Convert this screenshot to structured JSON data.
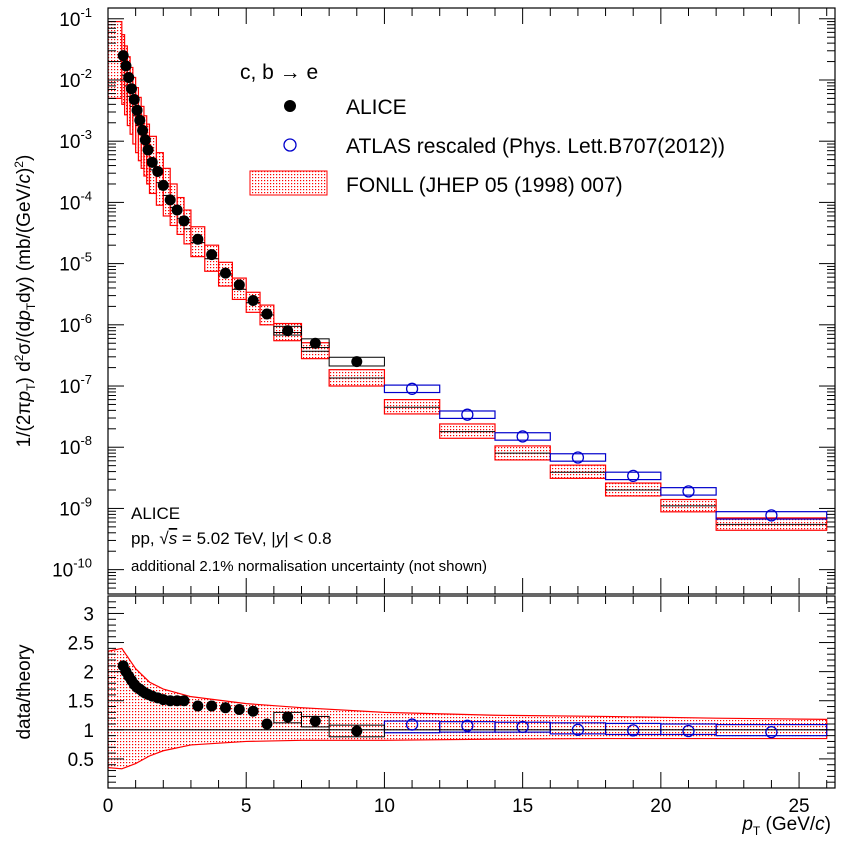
{
  "chart_data": [
    {
      "type": "scatter",
      "panel": "top",
      "xlabel": "p_T (GeV/c)",
      "ylabel": "1/(2πp_T) d²σ/(dp_T dy) (mb/(GeV/c)²)",
      "xlim": [
        0,
        26.3
      ],
      "ylim": [
        4e-11,
        0.15
      ],
      "yscale": "log",
      "ytick_labels": [
        "10^-1",
        "10^-2",
        "10^-3",
        "10^-4",
        "10^-5",
        "10^-6",
        "10^-7",
        "10^-8",
        "10^-9",
        "10^-10"
      ],
      "xtick_labels": [
        "0",
        "5",
        "10",
        "15",
        "20",
        "25"
      ],
      "legend": {
        "header": "c, b → e",
        "entries": [
          "ALICE",
          "ATLAS rescaled (Phys. Lett.B707(2012))",
          "FONLL (JHEP 05 (1998) 007)"
        ],
        "placement": "top-right"
      },
      "annotations": {
        "line1": "ALICE",
        "line2": "pp, √s = 5.02 TeV, |y| < 0.8",
        "line3": "additional 2.1% normalisation uncertainty (not shown)"
      },
      "series": [
        {
          "name": "ALICE",
          "style": "filled-circle",
          "color": "#000000",
          "x": [
            0.55,
            0.65,
            0.75,
            0.85,
            0.95,
            1.05,
            1.15,
            1.25,
            1.35,
            1.45,
            1.6,
            1.8,
            2.0,
            2.25,
            2.5,
            2.75,
            3.25,
            3.75,
            4.25,
            4.75,
            5.25,
            5.75,
            6.5,
            7.5,
            9.0
          ],
          "y": [
            0.025,
            0.017,
            0.011,
            0.0072,
            0.0048,
            0.0032,
            0.0022,
            0.0015,
            0.00105,
            0.00072,
            0.00045,
            0.00032,
            0.00019,
            0.00011,
            7.5e-05,
            5e-05,
            2.5e-05,
            1.4e-05,
            7e-06,
            4.5e-06,
            2.5e-06,
            1.5e-06,
            8e-07,
            5e-07,
            2.5e-07
          ]
        },
        {
          "name": "ATLAS rescaled (Phys. Lett.B707(2012))",
          "style": "open-circle",
          "color": "#0000cc",
          "x": [
            11,
            13,
            15,
            17,
            19,
            21,
            24
          ],
          "y": [
            9e-08,
            3.4e-08,
            1.5e-08,
            6.8e-09,
            3.4e-09,
            1.9e-09,
            7.7e-10
          ]
        },
        {
          "name": "FONLL (JHEP 05 (1998) 007)",
          "style": "band",
          "color": "#ff0000",
          "bins": [
            [
              0,
              0.5,
              0.02,
              0.09,
              0.005
            ],
            [
              0.5,
              0.6,
              0.012,
              0.055,
              0.004
            ],
            [
              0.6,
              0.7,
              0.008,
              0.036,
              0.0027
            ],
            [
              0.7,
              0.8,
              0.0054,
              0.024,
              0.0018
            ],
            [
              0.8,
              0.9,
              0.0037,
              0.016,
              0.0013
            ],
            [
              0.9,
              1.0,
              0.0026,
              0.011,
              0.0009
            ],
            [
              1.0,
              1.1,
              0.0018,
              0.0075,
              0.00065
            ],
            [
              1.1,
              1.2,
              0.0013,
              0.0052,
              0.00048
            ],
            [
              1.2,
              1.3,
              0.00093,
              0.0037,
              0.00036
            ],
            [
              1.3,
              1.4,
              0.00068,
              0.0026,
              0.00027
            ],
            [
              1.4,
              1.5,
              0.0005,
              0.0019,
              0.0002
            ],
            [
              1.5,
              1.75,
              0.00034,
              0.0012,
              0.00014
            ],
            [
              1.75,
              2.0,
              0.00021,
              0.00065,
              9e-05
            ],
            [
              2.0,
              2.25,
              0.00013,
              0.00036,
              6e-05
            ],
            [
              2.25,
              2.5,
              8.3e-05,
              0.0002,
              4.2e-05
            ],
            [
              2.5,
              2.75,
              5.5e-05,
              0.00012,
              3e-05
            ],
            [
              2.75,
              3.0,
              3.7e-05,
              7.5e-05,
              2.1e-05
            ],
            [
              3.0,
              3.5,
              2.2e-05,
              4e-05,
              1.3e-05
            ],
            [
              3.5,
              4.0,
              1.2e-05,
              2e-05,
              7.5e-06
            ],
            [
              4.0,
              4.5,
              6.5e-06,
              1.05e-05,
              4.3e-06
            ],
            [
              4.5,
              5.0,
              3.8e-06,
              5.8e-06,
              2.6e-06
            ],
            [
              5.0,
              5.5,
              2.3e-06,
              3.4e-06,
              1.6e-06
            ],
            [
              5.5,
              6.0,
              1.45e-06,
              2.1e-06,
              1e-06
            ],
            [
              6.0,
              7.0,
              7.5e-07,
              1.05e-06,
              5.5e-07
            ],
            [
              7.0,
              8.0,
              3.7e-07,
              5.1e-07,
              2.8e-07
            ],
            [
              8.0,
              10.0,
              1.35e-07,
              1.85e-07,
              1e-07
            ],
            [
              10.0,
              12.0,
              4.5e-08,
              6e-08,
              3.5e-08
            ],
            [
              12.0,
              14.0,
              1.8e-08,
              2.4e-08,
              1.4e-08
            ],
            [
              14.0,
              16.0,
              8e-09,
              1.05e-08,
              6.2e-09
            ],
            [
              16.0,
              18.0,
              3.9e-09,
              5.1e-09,
              3.1e-09
            ],
            [
              18.0,
              20.0,
              2e-09,
              2.6e-09,
              1.6e-09
            ],
            [
              20.0,
              22.0,
              1.1e-09,
              1.4e-09,
              8.8e-10
            ],
            [
              22.0,
              26.0,
              5.5e-10,
              7e-10,
              4.4e-10
            ]
          ]
        }
      ]
    },
    {
      "type": "scatter",
      "panel": "bottom",
      "xlabel": "p_T (GeV/c)",
      "ylabel": "data/theory",
      "xlim": [
        0,
        26.3
      ],
      "ylim": [
        0,
        3.3
      ],
      "ytick_labels": [
        "0.5",
        "1",
        "1.5",
        "2",
        "2.5",
        "3"
      ],
      "xtick_labels": [
        "0",
        "5",
        "10",
        "15",
        "20",
        "25"
      ],
      "reference_line": 1,
      "fonll_band": [
        [
          0,
          2.35,
          0.35
        ],
        [
          0.5,
          2.4,
          0.33
        ],
        [
          1,
          2.05,
          0.42
        ],
        [
          1.5,
          1.82,
          0.55
        ],
        [
          2,
          1.7,
          0.64
        ],
        [
          3,
          1.57,
          0.74
        ],
        [
          5,
          1.45,
          0.8
        ],
        [
          7,
          1.38,
          0.82
        ],
        [
          10,
          1.3,
          0.82
        ],
        [
          14,
          1.25,
          0.84
        ],
        [
          18,
          1.23,
          0.85
        ],
        [
          22,
          1.2,
          0.85
        ],
        [
          26,
          1.18,
          0.85
        ]
      ],
      "series": [
        {
          "name": "ALICE",
          "style": "filled-circle",
          "color": "#000000",
          "x": [
            0.55,
            0.65,
            0.75,
            0.85,
            0.95,
            1.05,
            1.15,
            1.25,
            1.35,
            1.45,
            1.6,
            1.8,
            2.0,
            2.25,
            2.5,
            2.75,
            3.25,
            3.75,
            4.25,
            4.75,
            5.25,
            5.75,
            6.5,
            7.5,
            9.0
          ],
          "y": [
            2.1,
            2.0,
            1.92,
            1.85,
            1.78,
            1.73,
            1.7,
            1.66,
            1.63,
            1.61,
            1.58,
            1.55,
            1.52,
            1.5,
            1.5,
            1.5,
            1.41,
            1.41,
            1.38,
            1.35,
            1.32,
            1.1,
            1.22,
            1.15,
            0.98
          ]
        },
        {
          "name": "ATLAS rescaled (Phys. Lett.B707(2012))",
          "style": "open-circle",
          "color": "#0000cc",
          "x": [
            11,
            13,
            15,
            17,
            19,
            21,
            24
          ],
          "y": [
            1.09,
            1.07,
            1.05,
            1.0,
            0.99,
            0.98,
            0.96
          ]
        }
      ],
      "atlas_boxes": [
        [
          10,
          12,
          1.15,
          0.95
        ],
        [
          12,
          14,
          1.14,
          0.96
        ],
        [
          14,
          16,
          1.13,
          0.96
        ],
        [
          16,
          18,
          1.12,
          0.93
        ],
        [
          18,
          20,
          1.11,
          0.92
        ],
        [
          20,
          22,
          1.1,
          0.92
        ],
        [
          22,
          26,
          1.09,
          0.9
        ]
      ],
      "alice_boxes": [
        [
          6,
          7,
          1.3,
          1.12
        ],
        [
          7,
          8,
          1.23,
          1.05
        ],
        [
          8,
          10,
          1.08,
          0.88
        ]
      ]
    }
  ]
}
